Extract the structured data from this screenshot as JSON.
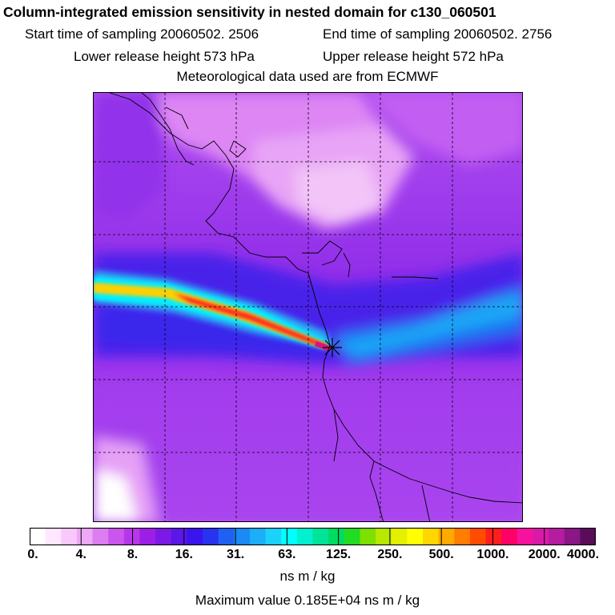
{
  "header": {
    "title": "Column-integrated emission sensitivity in nested domain for c130_060501",
    "start_label": "Start time of sampling 20060502.  2506",
    "end_label": "End time of sampling 20060502.  2756",
    "lower_label": "Lower release height  573 hPa",
    "upper_label": "Upper release height  572 hPa",
    "met_label": "Meteorological data used are from ECMWF"
  },
  "colorbar": {
    "tick_labels": [
      "0.",
      "4.",
      "8.",
      "16.",
      "31.",
      "63.",
      "125.",
      "250.",
      "500.",
      "1000.",
      "2000.",
      "4000."
    ],
    "colors": [
      "#ffffff",
      "#ffe8ff",
      "#f8c8fb",
      "#eea8f6",
      "#dd7df2",
      "#cc55ee",
      "#b836ea",
      "#9d1fe6",
      "#7c19e6",
      "#5b16e8",
      "#3a14ec",
      "#2833f0",
      "#1f62f2",
      "#1a8af4",
      "#1aaff7",
      "#1ad2fa",
      "#00ffff",
      "#00f0d0",
      "#00e49a",
      "#00dc60",
      "#22dc22",
      "#7ce000",
      "#b8e800",
      "#e4f000",
      "#ffff00",
      "#ffd700",
      "#ffaa00",
      "#ff7d00",
      "#ff4c00",
      "#ff1e1e",
      "#ff0066",
      "#f5129e",
      "#d91aa8",
      "#b51ca0",
      "#8a1785",
      "#5a0c5a"
    ],
    "units": "ns m / kg"
  },
  "footer": {
    "max_value_label": "Maximum value  0.185E+04 ns m / kg"
  },
  "map": {
    "release_marker": "star-marker-icon",
    "background_color": "#a63ff0",
    "plume_colors": [
      "#26b4f5",
      "#00ffff",
      "#ffd000",
      "#ff2a20",
      "#d9137a"
    ]
  }
}
